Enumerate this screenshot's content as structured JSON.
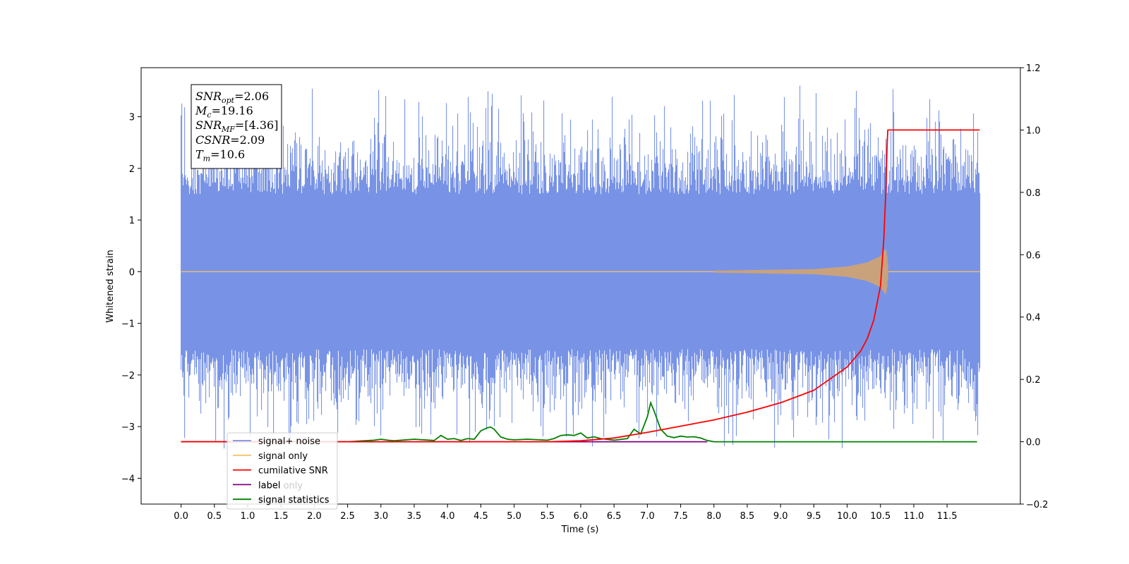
{
  "chart_data": {
    "type": "line",
    "xlabel": "Time (s)",
    "ylabel": "Whitened strain",
    "xlim": [
      -0.6,
      12.6
    ],
    "ylim": [
      -4.5,
      3.95
    ],
    "y2lim": [
      -0.2,
      1.2
    ],
    "x_ticks": [
      "0.0",
      "0.5",
      "1.0",
      "1.5",
      "2.0",
      "2.5",
      "3.0",
      "3.5",
      "4.0",
      "4.5",
      "5.0",
      "5.5",
      "6.0",
      "6.5",
      "7.0",
      "7.5",
      "8.0",
      "8.5",
      "9.0",
      "9.5",
      "10.0",
      "10.5",
      "11.0",
      "11.5"
    ],
    "y_ticks": [
      "3",
      "2",
      "1",
      "0",
      "−1",
      "−2",
      "−3",
      "−4"
    ],
    "y2_ticks": [
      "1.2",
      "1.0",
      "0.8",
      "0.6",
      "0.4",
      "0.2",
      "0.0",
      "−0.2"
    ],
    "info_box": [
      {
        "sym": "SNR",
        "sub": "opt",
        "val": "=2.06"
      },
      {
        "sym": "M",
        "sub": "c",
        "val": "=19.16"
      },
      {
        "sym": "SNR",
        "sub": "MF",
        "val": "=[4.36]"
      },
      {
        "sym": "CSNR",
        "sub": "",
        "val": "=2.09"
      },
      {
        "sym": "T",
        "sub": "m",
        "val": "=10.6"
      }
    ],
    "legend": [
      "signal+ noise",
      "signal only",
      "cumilative SNR",
      "label",
      "signal statistics"
    ],
    "legend_overlapped": [
      "label only",
      "signal statistics"
    ],
    "legend_placement": "lower-left",
    "series": [
      {
        "name": "signal+ noise",
        "axis": "left",
        "color": "#7893e6",
        "description": "whitened noise band spanning about -2.4 to 2.5 with spikes up to 3.6 and down to -3.5",
        "x_range": [
          0.0,
          11.99
        ]
      },
      {
        "name": "signal only",
        "axis": "left",
        "color": "#f5c06a",
        "chirp_envelope": [
          [
            0.0,
            0.0
          ],
          [
            8.0,
            0.02
          ],
          [
            9.5,
            0.05
          ],
          [
            10.0,
            0.1
          ],
          [
            10.3,
            0.18
          ],
          [
            10.5,
            0.3
          ],
          [
            10.58,
            0.45
          ],
          [
            10.6,
            0.3
          ],
          [
            10.62,
            0.0
          ]
        ]
      },
      {
        "name": "cumilative SNR",
        "axis": "right",
        "color": "#ff0000",
        "x": [
          0.0,
          5.5,
          6.0,
          6.5,
          7.0,
          7.5,
          8.0,
          8.5,
          9.0,
          9.5,
          10.0,
          10.2,
          10.3,
          10.4,
          10.5,
          10.55,
          10.58,
          10.6,
          10.61,
          11.0,
          11.5,
          11.99
        ],
        "y": [
          0.0,
          0.0,
          0.003,
          0.012,
          0.03,
          0.05,
          0.07,
          0.095,
          0.125,
          0.165,
          0.24,
          0.29,
          0.33,
          0.39,
          0.5,
          0.65,
          0.8,
          0.95,
          1.0,
          1.0,
          1.0,
          1.0
        ]
      },
      {
        "name": "label",
        "axis": "right",
        "color": "#800080",
        "x": [
          0.0,
          7.9
        ],
        "y": [
          0.0,
          0.0
        ]
      },
      {
        "name": "signal statistics",
        "axis": "right",
        "color": "#008000",
        "x": [
          0.0,
          2.5,
          2.9,
          3.0,
          3.1,
          3.2,
          3.5,
          3.8,
          3.9,
          4.0,
          4.1,
          4.2,
          4.3,
          4.4,
          4.5,
          4.6,
          4.65,
          4.7,
          4.8,
          4.9,
          5.0,
          5.2,
          5.5,
          5.6,
          5.7,
          5.8,
          5.9,
          6.0,
          6.1,
          6.2,
          6.3,
          6.5,
          6.7,
          6.8,
          6.9,
          7.0,
          7.05,
          7.1,
          7.2,
          7.3,
          7.4,
          7.5,
          7.6,
          7.7,
          7.8,
          7.9,
          8.0,
          11.95
        ],
        "y": [
          0.0,
          0.0,
          0.005,
          0.008,
          0.005,
          0.003,
          0.008,
          0.004,
          0.02,
          0.008,
          0.01,
          0.004,
          0.01,
          0.008,
          0.035,
          0.045,
          0.047,
          0.04,
          0.015,
          0.008,
          0.006,
          0.008,
          0.005,
          0.01,
          0.02,
          0.022,
          0.02,
          0.028,
          0.012,
          0.016,
          0.01,
          0.005,
          0.01,
          0.04,
          0.025,
          0.08,
          0.125,
          0.1,
          0.04,
          0.018,
          0.013,
          0.018,
          0.015,
          0.016,
          0.012,
          0.004,
          0.0,
          0.0
        ]
      }
    ]
  }
}
